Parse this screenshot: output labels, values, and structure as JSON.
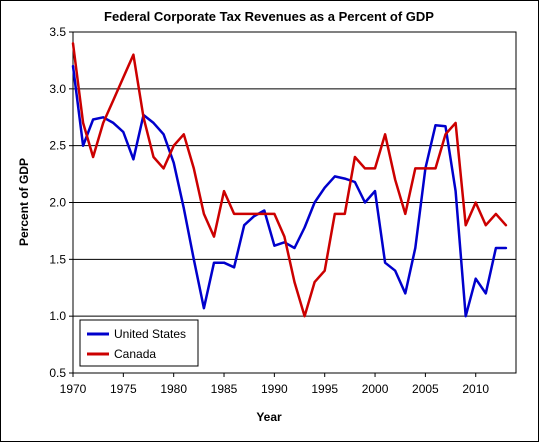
{
  "chart_data": {
    "type": "line",
    "title": "Federal Corporate Tax Revenues as a Percent of GDP",
    "xlabel": "Year",
    "ylabel": "Percent of GDP",
    "xlim": [
      1970,
      2014
    ],
    "ylim": [
      0.5,
      3.5
    ],
    "xticks": [
      1970,
      1975,
      1980,
      1985,
      1990,
      1995,
      2000,
      2005,
      2010
    ],
    "xtick_labels": [
      "1970",
      "1975",
      "1980",
      "1985",
      "1990",
      "1995",
      "2000",
      "2005",
      "2010"
    ],
    "yticks": [
      0.5,
      1.0,
      1.5,
      2.0,
      2.5,
      3.0,
      3.5
    ],
    "ytick_labels": [
      "0.5",
      "1.0",
      "1.5",
      "2.0",
      "2.5",
      "3.0",
      "3.5"
    ],
    "grid": "horizontal",
    "legend_position": "bottom-left",
    "x": [
      1970,
      1971,
      1972,
      1973,
      1974,
      1975,
      1976,
      1977,
      1978,
      1979,
      1980,
      1981,
      1982,
      1983,
      1984,
      1985,
      1986,
      1987,
      1988,
      1989,
      1990,
      1991,
      1992,
      1993,
      1994,
      1995,
      1996,
      1997,
      1998,
      1999,
      2000,
      2001,
      2002,
      2003,
      2004,
      2005,
      2006,
      2007,
      2008,
      2009,
      2010,
      2011,
      2012,
      2013
    ],
    "series": [
      {
        "name": "United States",
        "color": "#0000cc",
        "values": [
          3.2,
          2.5,
          2.73,
          2.75,
          2.7,
          2.62,
          2.38,
          2.77,
          2.7,
          2.6,
          2.35,
          1.95,
          1.5,
          1.07,
          1.47,
          1.47,
          1.43,
          1.8,
          1.88,
          1.93,
          1.62,
          1.65,
          1.6,
          1.78,
          2.0,
          2.13,
          2.23,
          2.21,
          2.18,
          2.0,
          2.1,
          1.47,
          1.4,
          1.2,
          1.6,
          2.3,
          2.68,
          2.67,
          2.1,
          1.0,
          1.33,
          1.2,
          1.6,
          1.6
        ]
      },
      {
        "name": "Canada",
        "color": "#cc0000",
        "values": [
          3.4,
          2.7,
          2.4,
          2.7,
          2.9,
          3.1,
          3.3,
          2.75,
          2.4,
          2.3,
          2.5,
          2.6,
          2.3,
          1.9,
          1.7,
          2.1,
          1.9,
          1.9,
          1.9,
          1.9,
          1.9,
          1.7,
          1.3,
          1.0,
          1.3,
          1.4,
          1.9,
          1.9,
          2.4,
          2.3,
          2.3,
          2.6,
          2.2,
          1.9,
          2.3,
          2.3,
          2.3,
          2.6,
          2.7,
          1.8,
          2.0,
          1.8,
          1.9,
          1.8
        ]
      }
    ]
  }
}
